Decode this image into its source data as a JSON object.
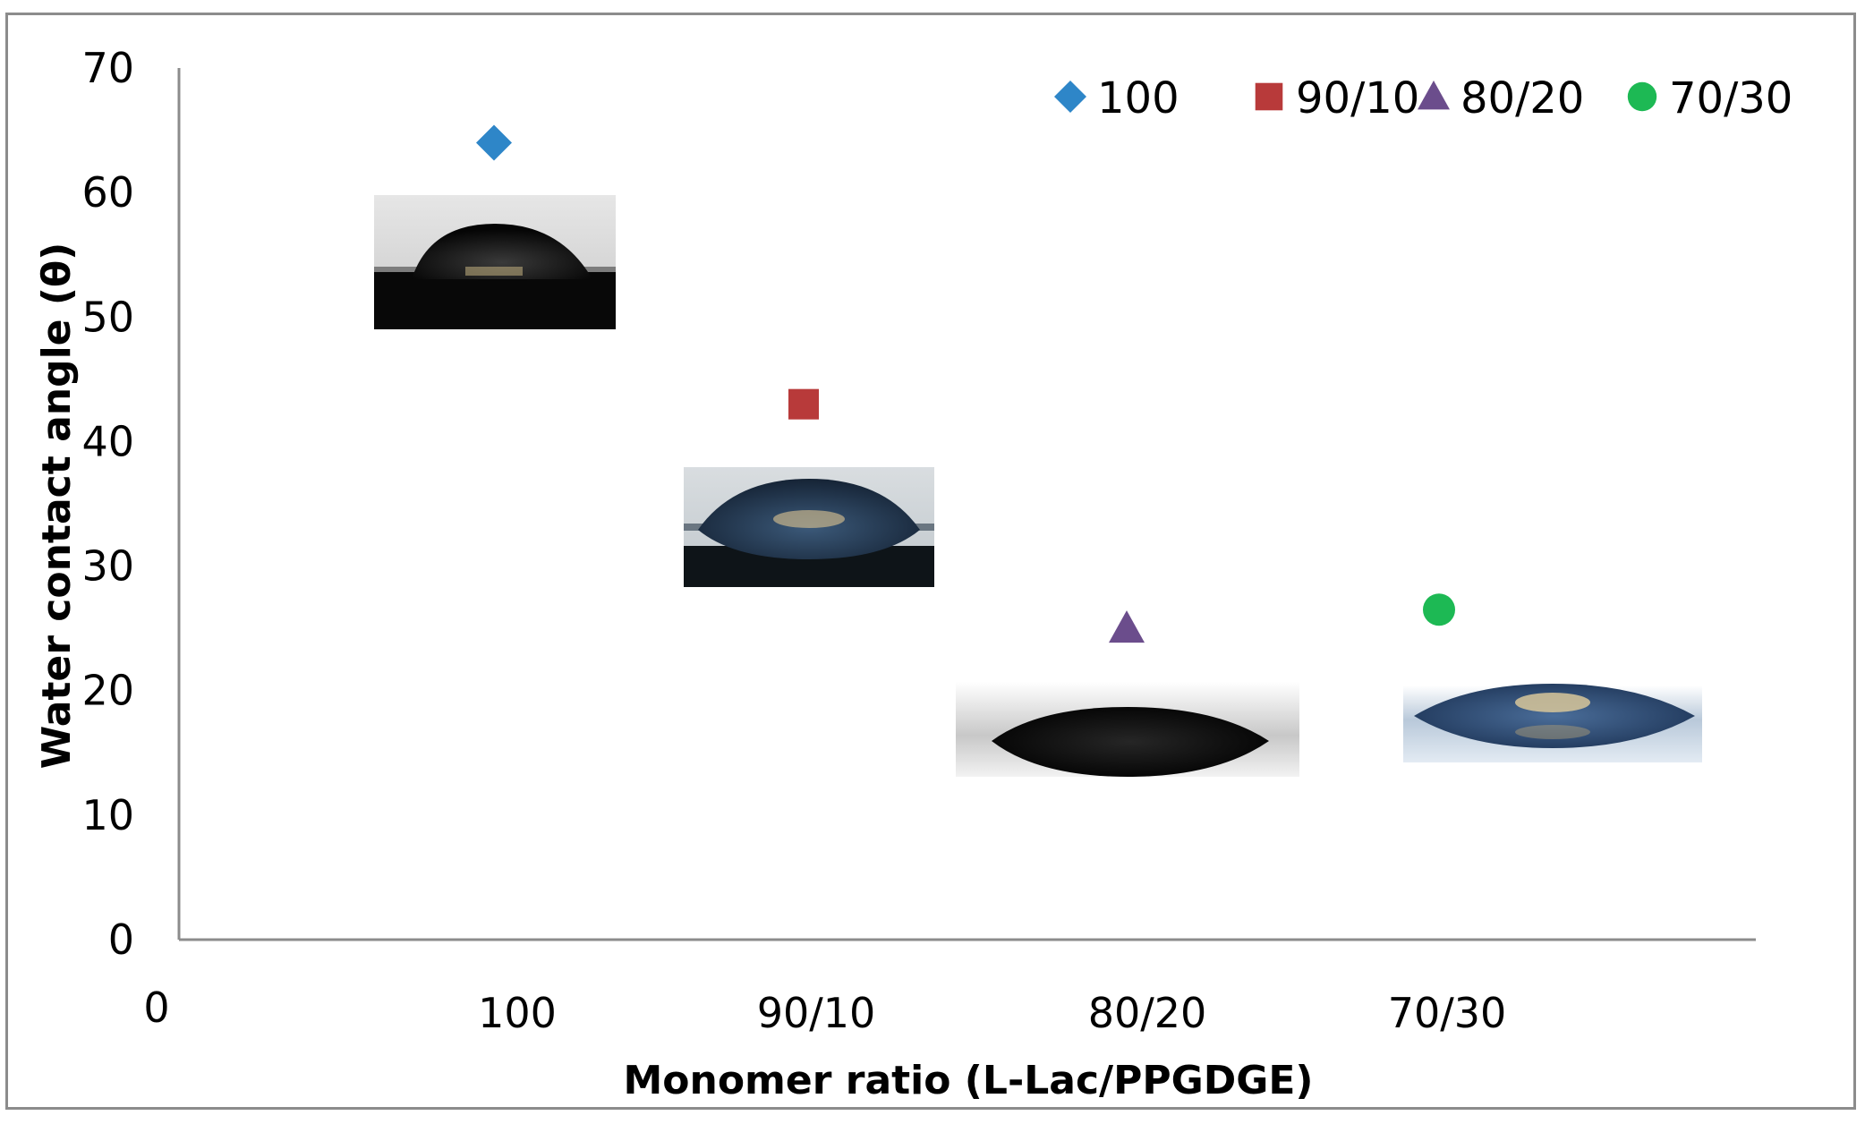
{
  "chart_data": {
    "type": "scatter",
    "title": "",
    "xlabel": "Monomer ratio (L-Lac/PPGDGE)",
    "ylabel": "Water contact angle (θ)",
    "ylim": [
      0,
      70
    ],
    "yticks": [
      0,
      10,
      20,
      30,
      40,
      50,
      60,
      70
    ],
    "x_origin_label": "0",
    "categories": [
      "100",
      "90/10",
      "80/20",
      "70/30"
    ],
    "legend_position": "top-right",
    "grid": false,
    "series": [
      {
        "name": "100",
        "marker": "diamond",
        "color": "#2e86c8",
        "x": "100",
        "y": 64
      },
      {
        "name": "90/10",
        "marker": "square",
        "color": "#b83a3a",
        "x": "90/10",
        "y": 43
      },
      {
        "name": "80/20",
        "marker": "triangle",
        "color": "#6b4d8c",
        "x": "80/20",
        "y": 25
      },
      {
        "name": "70/30",
        "marker": "circle",
        "color": "#1db954",
        "x": "70/30",
        "y": 26.5
      }
    ],
    "annotations": [
      "water droplet photo (100)",
      "water droplet photo (90/10)",
      "water droplet photo (80/20)",
      "water droplet photo (70/30)"
    ]
  }
}
